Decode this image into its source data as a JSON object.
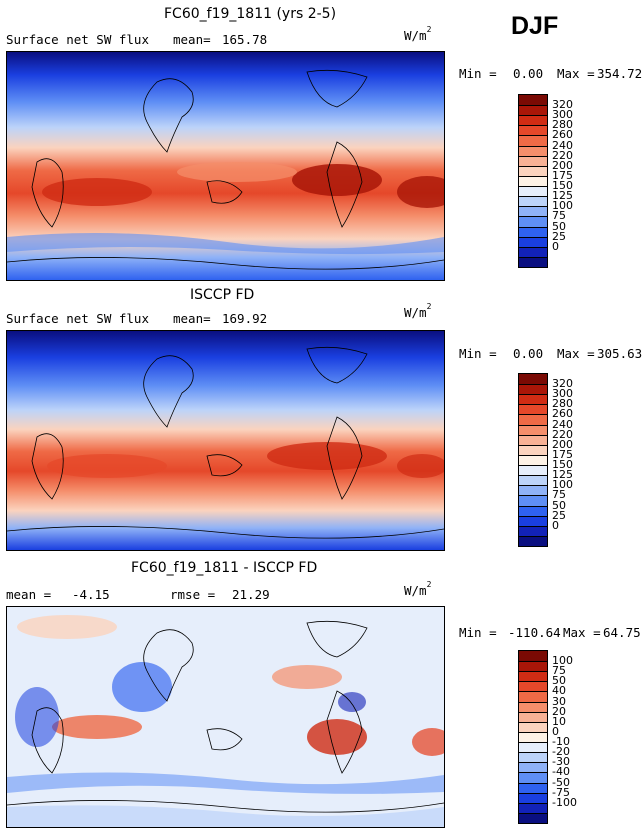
{
  "season": "DJF",
  "palette": {
    "flux": [
      "#0a0f80",
      "#1222b8",
      "#1a3fe0",
      "#2f62f0",
      "#5f8ff5",
      "#8fb2f7",
      "#bcd3f9",
      "#e6eefb",
      "#fdf2e6",
      "#fbd3be",
      "#f8b195",
      "#f58e6b",
      "#ef6a46",
      "#e5482a",
      "#d02c14",
      "#a91608",
      "#7a0a04"
    ],
    "diff": [
      "#0a0f80",
      "#1222b8",
      "#1a3fe0",
      "#2f62f0",
      "#5f8ff5",
      "#8fb2f7",
      "#bcd3f9",
      "#e6eefb",
      "#fdf2e6",
      "#fbd3be",
      "#f8b195",
      "#f58e6b",
      "#ef6a46",
      "#e5482a",
      "#d02c14",
      "#a91608",
      "#7a0a04"
    ]
  },
  "chart_data": [
    {
      "type": "heatmap",
      "title": "FC60_f19_1811 (yrs 2-5)",
      "variable": "Surface net SW flux",
      "stat_label": "mean=",
      "stat_value": "165.78",
      "units": "W/m",
      "units_sup": "2",
      "min_label": "Min =",
      "min_value": "0.00",
      "max_label": "Max =",
      "max_value": "354.72",
      "colorbar_levels": [
        "320",
        "300",
        "280",
        "260",
        "240",
        "220",
        "200",
        "175",
        "150",
        "125",
        "100",
        "75",
        "50",
        "25",
        "0"
      ]
    },
    {
      "type": "heatmap",
      "title": "ISCCP FD",
      "variable": "Surface net SW flux",
      "stat_label": "mean=",
      "stat_value": "169.92",
      "units": "W/m",
      "units_sup": "2",
      "min_label": "Min =",
      "min_value": "0.00",
      "max_label": "Max =",
      "max_value": "305.63",
      "colorbar_levels": [
        "320",
        "300",
        "280",
        "260",
        "240",
        "220",
        "200",
        "175",
        "150",
        "125",
        "100",
        "75",
        "50",
        "25",
        "0"
      ]
    },
    {
      "type": "heatmap",
      "title": "FC60_f19_1811 - ISCCP FD",
      "stat_label": "mean =",
      "stat_value": "-4.15",
      "stat2_label": "rmse =",
      "stat2_value": "21.29",
      "units": "W/m",
      "units_sup": "2",
      "min_label": "Min =",
      "min_value": "-110.64",
      "max_label": "Max =",
      "max_value": "64.75",
      "colorbar_levels": [
        "100",
        "75",
        "50",
        "40",
        "30",
        "20",
        "10",
        "0",
        "-10",
        "-20",
        "-30",
        "-40",
        "-50",
        "-75",
        "-100"
      ]
    }
  ]
}
